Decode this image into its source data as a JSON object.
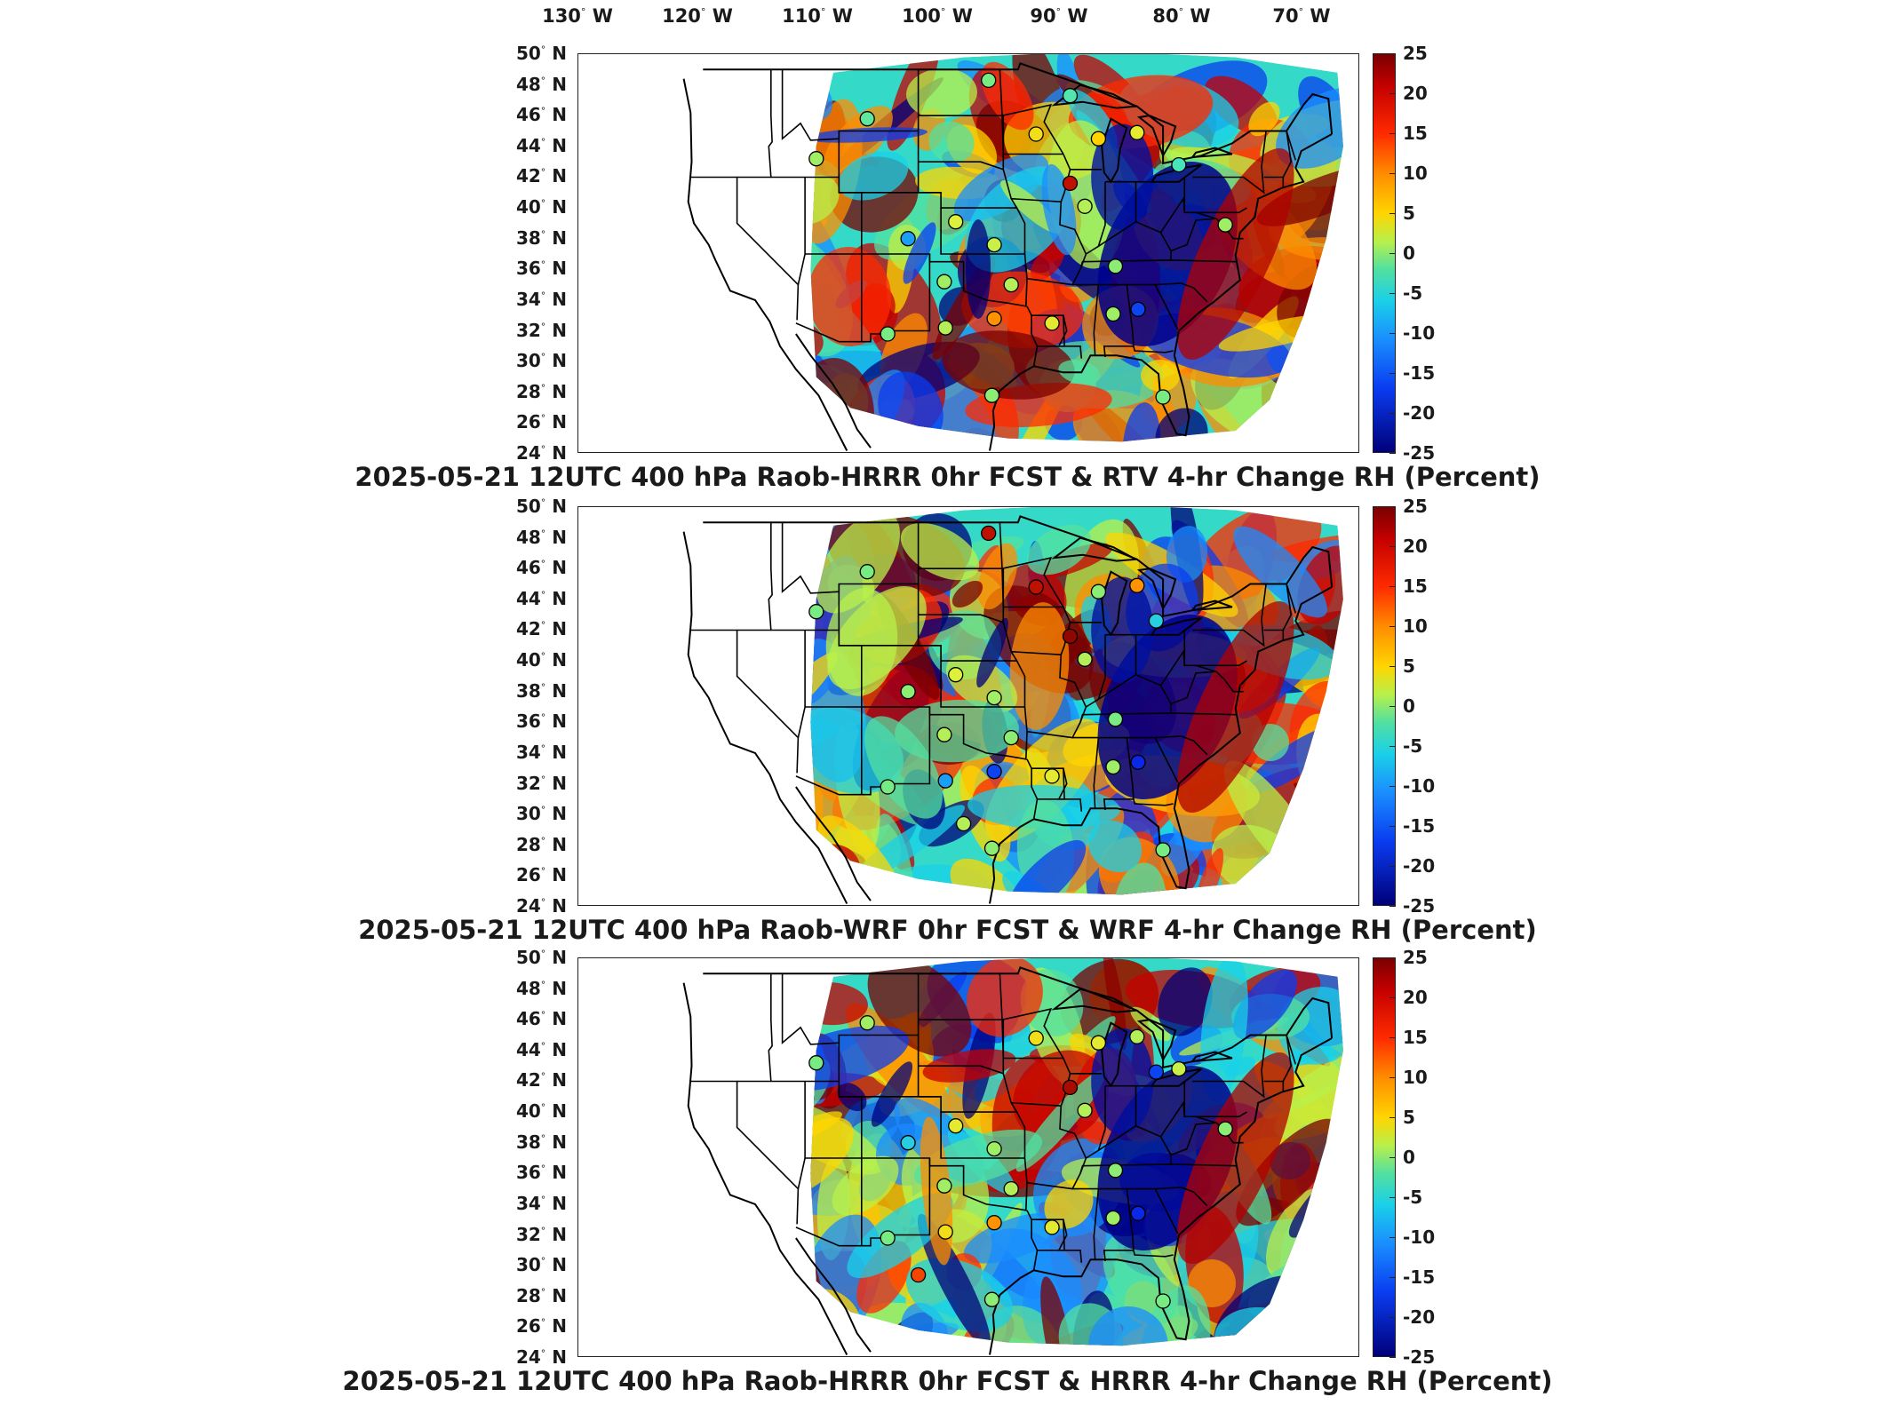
{
  "longitude_labels": [
    {
      "deg": "130",
      "dir": "W"
    },
    {
      "deg": "120",
      "dir": "W"
    },
    {
      "deg": "110",
      "dir": "W"
    },
    {
      "deg": "100",
      "dir": "W"
    },
    {
      "deg": "90",
      "dir": "W"
    },
    {
      "deg": "80",
      "dir": "W"
    },
    {
      "deg": "70",
      "dir": "W"
    }
  ],
  "latitude_labels": [
    {
      "deg": "50",
      "dir": "N"
    },
    {
      "deg": "48",
      "dir": "N"
    },
    {
      "deg": "46",
      "dir": "N"
    },
    {
      "deg": "44",
      "dir": "N"
    },
    {
      "deg": "42",
      "dir": "N"
    },
    {
      "deg": "40",
      "dir": "N"
    },
    {
      "deg": "38",
      "dir": "N"
    },
    {
      "deg": "36",
      "dir": "N"
    },
    {
      "deg": "34",
      "dir": "N"
    },
    {
      "deg": "32",
      "dir": "N"
    },
    {
      "deg": "30",
      "dir": "N"
    },
    {
      "deg": "28",
      "dir": "N"
    },
    {
      "deg": "26",
      "dir": "N"
    },
    {
      "deg": "24",
      "dir": "N"
    }
  ],
  "colorbar": {
    "ticks": [
      "25",
      "20",
      "15",
      "10",
      "5",
      "0",
      "-5",
      "-10",
      "-15",
      "-20",
      "-25"
    ],
    "min": -25,
    "max": 25,
    "colors": {
      "high": "#7a0000",
      "mid_high": "#ff8c00",
      "mid": "#ffd500",
      "zero": "#53e0a0",
      "mid_low": "#1a8cff",
      "low": "#00007a"
    }
  },
  "panels": [
    {
      "title": "2025-05-21 12UTC 400 hPa Raob-HRRR 0hr FCST & RTV 4-hr Change RH (Percent)",
      "raob_stations": [
        {
          "lon": -97.8,
          "lat": 48.3,
          "value": 0
        },
        {
          "lon": -90.6,
          "lat": 47.3,
          "value": -3
        },
        {
          "lon": -108.5,
          "lat": 45.8,
          "value": -2
        },
        {
          "lon": -93.6,
          "lat": 44.8,
          "value": 8
        },
        {
          "lon": -88.1,
          "lat": 44.5,
          "value": 10
        },
        {
          "lon": -84.7,
          "lat": 44.9,
          "value": 6
        },
        {
          "lon": -113.0,
          "lat": 43.2,
          "value": 2
        },
        {
          "lon": -90.6,
          "lat": 41.6,
          "value": 22
        },
        {
          "lon": -89.3,
          "lat": 40.1,
          "value": 3
        },
        {
          "lon": -81.0,
          "lat": 42.8,
          "value": -4
        },
        {
          "lon": -100.7,
          "lat": 39.1,
          "value": 5
        },
        {
          "lon": -104.9,
          "lat": 38.0,
          "value": -12
        },
        {
          "lon": -97.3,
          "lat": 37.6,
          "value": 4
        },
        {
          "lon": -86.6,
          "lat": 36.2,
          "value": 1
        },
        {
          "lon": -101.7,
          "lat": 35.2,
          "value": 2
        },
        {
          "lon": -95.8,
          "lat": 35.0,
          "value": 3
        },
        {
          "lon": -86.8,
          "lat": 33.1,
          "value": 2
        },
        {
          "lon": -84.6,
          "lat": 33.4,
          "value": -18
        },
        {
          "lon": -92.2,
          "lat": 32.5,
          "value": 6
        },
        {
          "lon": -97.3,
          "lat": 32.8,
          "value": 14
        },
        {
          "lon": -101.6,
          "lat": 32.2,
          "value": 3
        },
        {
          "lon": -106.7,
          "lat": 31.8,
          "value": 0
        },
        {
          "lon": -97.5,
          "lat": 27.8,
          "value": 1
        },
        {
          "lon": -82.4,
          "lat": 27.7,
          "value": 0
        },
        {
          "lon": -76.9,
          "lat": 38.9,
          "value": 2
        }
      ]
    },
    {
      "title": "2025-05-21 12UTC 400 hPa Raob-WRF 0hr FCST & WRF 4-hr Change RH (Percent)",
      "raob_stations": [
        {
          "lon": -97.8,
          "lat": 48.3,
          "value": 22
        },
        {
          "lon": -108.5,
          "lat": 45.8,
          "value": 0
        },
        {
          "lon": -93.6,
          "lat": 44.8,
          "value": 22
        },
        {
          "lon": -88.1,
          "lat": 44.5,
          "value": 1
        },
        {
          "lon": -84.7,
          "lat": 44.9,
          "value": 14
        },
        {
          "lon": -83.0,
          "lat": 42.6,
          "value": -8
        },
        {
          "lon": -113.0,
          "lat": 43.2,
          "value": 0
        },
        {
          "lon": -90.6,
          "lat": 41.6,
          "value": 24
        },
        {
          "lon": -89.3,
          "lat": 40.1,
          "value": 3
        },
        {
          "lon": -100.7,
          "lat": 39.1,
          "value": 5
        },
        {
          "lon": -104.9,
          "lat": 38.0,
          "value": 1
        },
        {
          "lon": -97.3,
          "lat": 37.6,
          "value": 2
        },
        {
          "lon": -86.6,
          "lat": 36.2,
          "value": 0
        },
        {
          "lon": -101.7,
          "lat": 35.2,
          "value": 3
        },
        {
          "lon": -95.8,
          "lat": 35.0,
          "value": 1
        },
        {
          "lon": -86.8,
          "lat": 33.1,
          "value": 2
        },
        {
          "lon": -84.6,
          "lat": 33.4,
          "value": -20
        },
        {
          "lon": -92.2,
          "lat": 32.5,
          "value": 6
        },
        {
          "lon": -97.3,
          "lat": 32.8,
          "value": -18
        },
        {
          "lon": -101.6,
          "lat": 32.2,
          "value": -12
        },
        {
          "lon": -106.7,
          "lat": 31.8,
          "value": 0
        },
        {
          "lon": -97.5,
          "lat": 27.8,
          "value": 1
        },
        {
          "lon": -82.4,
          "lat": 27.7,
          "value": 0
        },
        {
          "lon": -100.0,
          "lat": 29.4,
          "value": 3
        }
      ]
    },
    {
      "title": "2025-05-21 12UTC 400 hPa Raob-HRRR 0hr FCST & HRRR 4-hr Change RH (Percent)",
      "raob_stations": [
        {
          "lon": -108.5,
          "lat": 45.8,
          "value": 2
        },
        {
          "lon": -93.6,
          "lat": 44.8,
          "value": 8
        },
        {
          "lon": -88.1,
          "lat": 44.5,
          "value": 6
        },
        {
          "lon": -84.7,
          "lat": 44.9,
          "value": 3
        },
        {
          "lon": -113.0,
          "lat": 43.2,
          "value": 0
        },
        {
          "lon": -83.0,
          "lat": 42.6,
          "value": -18
        },
        {
          "lon": -90.6,
          "lat": 41.6,
          "value": 23
        },
        {
          "lon": -89.3,
          "lat": 40.1,
          "value": 3
        },
        {
          "lon": -81.0,
          "lat": 42.8,
          "value": 4
        },
        {
          "lon": -100.7,
          "lat": 39.1,
          "value": 6
        },
        {
          "lon": -104.9,
          "lat": 38.0,
          "value": -8
        },
        {
          "lon": -97.3,
          "lat": 37.6,
          "value": 2
        },
        {
          "lon": -86.6,
          "lat": 36.2,
          "value": 1
        },
        {
          "lon": -101.7,
          "lat": 35.2,
          "value": 2
        },
        {
          "lon": -95.8,
          "lat": 35.0,
          "value": 3
        },
        {
          "lon": -86.8,
          "lat": 33.1,
          "value": 2
        },
        {
          "lon": -84.6,
          "lat": 33.4,
          "value": -20
        },
        {
          "lon": -92.2,
          "lat": 32.5,
          "value": 6
        },
        {
          "lon": -97.3,
          "lat": 32.8,
          "value": 14
        },
        {
          "lon": -101.6,
          "lat": 32.2,
          "value": 8
        },
        {
          "lon": -106.7,
          "lat": 31.8,
          "value": 0
        },
        {
          "lon": -104.0,
          "lat": 29.4,
          "value": 18
        },
        {
          "lon": -97.5,
          "lat": 27.8,
          "value": 1
        },
        {
          "lon": -82.4,
          "lat": 27.7,
          "value": 0
        },
        {
          "lon": -76.9,
          "lat": 38.9,
          "value": 1
        }
      ]
    }
  ]
}
